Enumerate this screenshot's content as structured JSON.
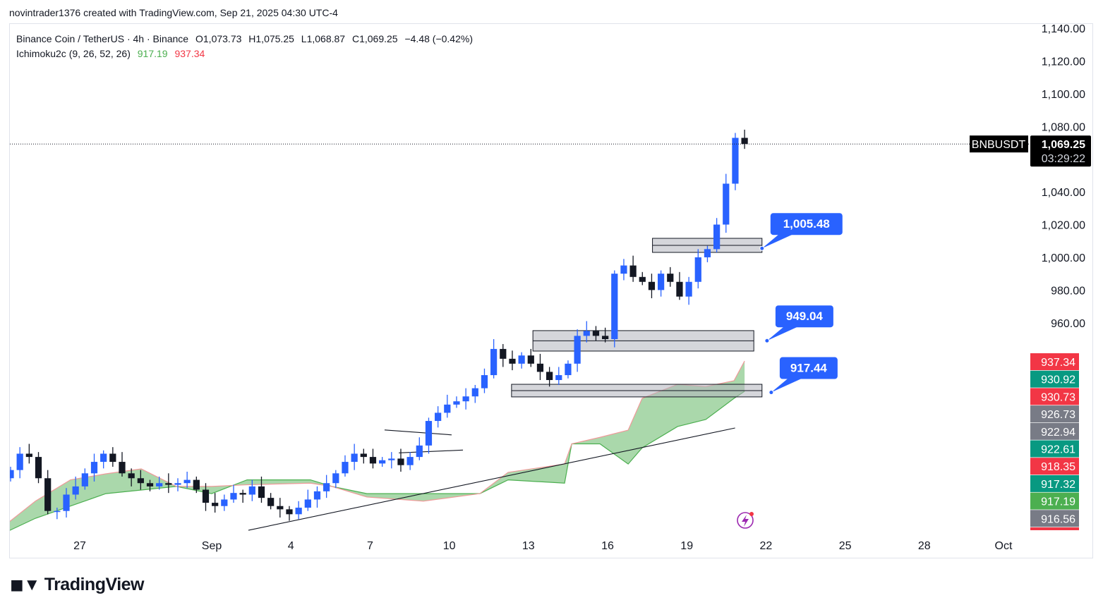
{
  "credit": "novintrader1376 created with TradingView.com, Sep 21, 2025 04:30 UTC-4",
  "legend": {
    "symbol": "Binance Coin / TetherUS · 4h · Binance",
    "open": "O1,073.73",
    "high": "H1,075.25",
    "low": "L1,068.87",
    "close": "C1,069.25",
    "change": "−4.48 (−0.42%)",
    "indicator": "Ichimoku2c (9, 26, 52, 26)",
    "ind_val1": "917.19",
    "ind_val2": "937.34"
  },
  "footer": {
    "brand": "TradingView"
  },
  "colors": {
    "up": "#2962ff",
    "down": "#131722",
    "cloud": "#a5d6a7",
    "spanA": "#4caf50",
    "spanB": "#ef9a9a",
    "callout": "#2962ff"
  },
  "chart_data": {
    "type": "candlestick",
    "symbol_tag": "BNBUSDT",
    "last_price": "1,069.25",
    "countdown": "03:29:22",
    "last_value": 1069.25,
    "price_ticks": [
      "1,140.00",
      "1,120.00",
      "1,100.00",
      "1,080.00",
      "1,040.00",
      "1,020.00",
      "1,000.00",
      "980.00",
      "960.00"
    ],
    "price_tick_values": [
      1140,
      1120,
      1100,
      1080,
      1040,
      1020,
      1000,
      980,
      960
    ],
    "time_ticks": [
      "27",
      "Sep",
      "4",
      "7",
      "10",
      "13",
      "16",
      "19",
      "22",
      "25",
      "28",
      "Oct"
    ],
    "time_tick_days": [
      3,
      8,
      11,
      14,
      17,
      20,
      23,
      26,
      29,
      32,
      35,
      38
    ],
    "time_origin": "Aug 24, 2025",
    "ylim": [
      820,
      1140
    ],
    "close_start_day": 0.38,
    "close_end_day": 28.19,
    "closes": [
      870,
      880,
      878,
      865,
      845,
      845,
      855,
      860,
      868,
      875,
      880,
      875,
      868,
      865,
      862,
      860,
      862,
      861,
      862,
      864,
      858,
      850,
      848,
      852,
      856,
      855,
      860,
      853,
      848,
      846,
      843,
      847,
      852,
      857,
      862,
      868,
      875,
      880,
      878,
      874,
      876,
      877,
      873,
      878,
      885,
      900,
      905,
      910,
      912,
      915,
      920,
      928,
      944,
      938,
      935,
      940,
      935,
      930,
      925,
      928,
      935,
      952,
      955,
      952,
      950,
      990,
      995,
      988,
      985,
      980,
      990,
      985,
      976,
      985,
      1000,
      1005,
      1020,
      1045,
      1073,
      1069.25
    ],
    "ichimoku_cloud": {
      "days": [
        0.33,
        1.32,
        2.65,
        3.99,
        5.33,
        6.66,
        8.0,
        9.34,
        11.74,
        12.55,
        13.88,
        16.02,
        18.16,
        19.23,
        21.37,
        21.64,
        22.71,
        23.78,
        24.31,
        25.65,
        26.72,
        27.79,
        28.19
      ],
      "span_a": [
        833,
        840.5,
        848,
        855.6,
        857.8,
        860,
        855.6,
        864,
        864,
        860,
        855.6,
        855.6,
        855.6,
        864,
        862,
        886,
        886,
        873.7,
        883.6,
        896.6,
        900.9,
        913.8,
        918.1
      ],
      "span_b": [
        838.4,
        851,
        864,
        867.7,
        870.7,
        860,
        860,
        861,
        862,
        860,
        853.5,
        851,
        855.6,
        868.6,
        873.7,
        886,
        890,
        894.4,
        913.8,
        922.4,
        921,
        924.6,
        936.6
      ]
    },
    "price_labels": [
      {
        "text": "937.34",
        "color": "#f23645"
      },
      {
        "text": "930.92",
        "color": "#089981"
      },
      {
        "text": "930.73",
        "color": "#f23645"
      },
      {
        "text": "926.73",
        "color": "#787b86"
      },
      {
        "text": "922.94",
        "color": "#787b86"
      },
      {
        "text": "922.61",
        "color": "#089981"
      },
      {
        "text": "918.35",
        "color": "#f23645"
      },
      {
        "text": "917.32",
        "color": "#089981"
      },
      {
        "text": "917.19",
        "color": "#4caf50"
      },
      {
        "text": "916.56",
        "color": "#787b86"
      }
    ],
    "zones": [
      {
        "top": 1011.6,
        "bottom": 1003,
        "from_day": 24.7,
        "to_day": 28.85
      },
      {
        "top": 955.2,
        "bottom": 942.7,
        "from_day": 20.17,
        "to_day": 28.54
      },
      {
        "top": 922.4,
        "bottom": 914.7,
        "from_day": 19.36,
        "to_day": 28.85
      }
    ],
    "callouts": [
      {
        "text": "1,005.48",
        "price": 1005.48,
        "day": 28.85
      },
      {
        "text": "949.04",
        "price": 949.04,
        "day": 29.04
      },
      {
        "text": "917.44",
        "price": 917.44,
        "day": 29.2
      }
    ],
    "trendlines": [
      {
        "from": [
          9.39,
          833.2
        ],
        "to": [
          27.83,
          895.7
        ]
      },
      {
        "from": [
          14.55,
          894.5
        ],
        "to": [
          17.09,
          891.5
        ]
      },
      {
        "from": [
          15.09,
          880.5
        ],
        "to": [
          17.52,
          882.2
        ]
      }
    ]
  }
}
